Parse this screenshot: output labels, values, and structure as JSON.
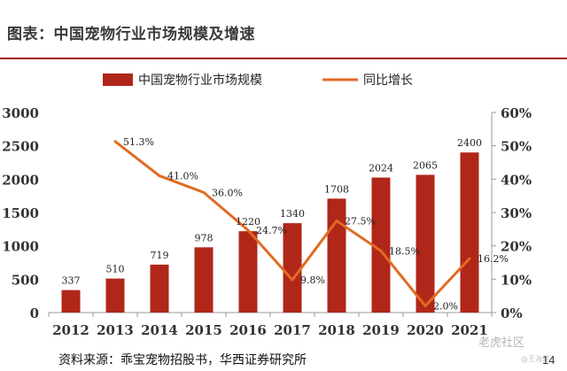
{
  "header": {
    "title": "图表：中国宠物行业市场规模及增速"
  },
  "footer": {
    "source": "资料来源：乖宝宠物招股书，华西证券研究所",
    "page_number": "14",
    "watermark_main": "老虎社区",
    "watermark_sub": "@王海洋"
  },
  "colors": {
    "bar": "#b0271a",
    "line": "#e26a22",
    "rule": "#9e1b12"
  },
  "chart_data": {
    "type": "bar",
    "categories": [
      "2012",
      "2013",
      "2014",
      "2015",
      "2016",
      "2017",
      "2018",
      "2019",
      "2020",
      "2021"
    ],
    "series": [
      {
        "name": "中国宠物行业市场规模",
        "type": "bar",
        "axis": "left",
        "values": [
          337,
          510,
          719,
          978,
          1220,
          1340,
          1708,
          2024,
          2065,
          2400
        ],
        "labels": [
          "337",
          "510",
          "719",
          "978",
          "1220",
          "1340",
          "1708",
          "2024",
          "2065",
          "2400"
        ]
      },
      {
        "name": "同比增长",
        "type": "line",
        "axis": "right",
        "values": [
          null,
          51.3,
          41.0,
          36.0,
          24.7,
          9.8,
          27.5,
          18.5,
          2.0,
          16.2
        ],
        "labels": [
          "",
          "51.3%",
          "41.0%",
          "36.0%",
          "24.7%",
          "9.8%",
          "27.5%",
          "18.5%",
          "2.0%",
          "16.2%"
        ]
      }
    ],
    "y_left": {
      "lim": [
        0,
        3000
      ],
      "ticks": [
        "0",
        "500",
        "1000",
        "1500",
        "2000",
        "2500",
        "3000"
      ]
    },
    "y_right": {
      "lim": [
        0,
        60
      ],
      "ticks": [
        "0%",
        "10%",
        "20%",
        "30%",
        "40%",
        "50%",
        "60%"
      ]
    },
    "legend_position": "top",
    "grid": false
  }
}
